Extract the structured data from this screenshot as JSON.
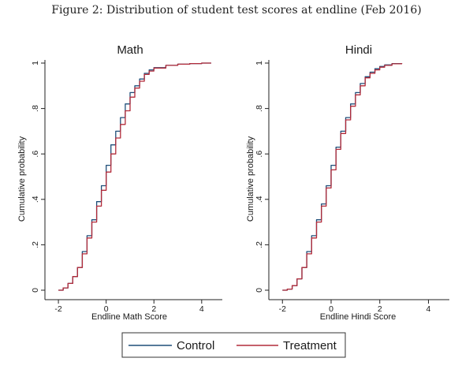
{
  "figure": {
    "title": "Figure 2: Distribution of student test scores at endline (Feb 2016)"
  },
  "legend": {
    "items": [
      {
        "label": "Control",
        "color": "#1f4e79"
      },
      {
        "label": "Treatment",
        "color": "#b22b3a"
      }
    ]
  },
  "chart_data": [
    {
      "type": "line",
      "title": "Math",
      "xlabel": "Endline Math Score",
      "ylabel": "Cumulative probability",
      "xlim": [
        -2.3,
        4.6
      ],
      "ylim": [
        0,
        1
      ],
      "xticks": [
        -2,
        0,
        2,
        4
      ],
      "xtick_labels": [
        "-2",
        "0",
        "2",
        "4"
      ],
      "yticks": [
        0,
        0.2,
        0.4,
        0.6,
        0.8,
        1
      ],
      "ytick_labels": [
        "0",
        ".2",
        ".4",
        ".6",
        ".8",
        "1"
      ],
      "grid": false,
      "series": [
        {
          "name": "Control",
          "x": [
            -2.0,
            -1.8,
            -1.6,
            -1.4,
            -1.2,
            -1.0,
            -0.8,
            -0.6,
            -0.4,
            -0.2,
            0.0,
            0.2,
            0.4,
            0.6,
            0.8,
            1.0,
            1.2,
            1.4,
            1.6,
            1.8,
            2.0,
            2.5,
            3.0,
            3.5,
            4.0,
            4.4
          ],
          "values": [
            0.0,
            0.01,
            0.03,
            0.06,
            0.1,
            0.17,
            0.24,
            0.31,
            0.39,
            0.46,
            0.55,
            0.64,
            0.7,
            0.76,
            0.82,
            0.87,
            0.9,
            0.93,
            0.955,
            0.97,
            0.98,
            0.99,
            0.995,
            0.998,
            1.0,
            1.0
          ]
        },
        {
          "name": "Treatment",
          "x": [
            -2.0,
            -1.8,
            -1.6,
            -1.4,
            -1.2,
            -1.0,
            -0.8,
            -0.6,
            -0.4,
            -0.2,
            0.0,
            0.2,
            0.4,
            0.6,
            0.8,
            1.0,
            1.2,
            1.4,
            1.6,
            1.8,
            2.0,
            2.5,
            3.0,
            3.5,
            4.0,
            4.4
          ],
          "values": [
            0.0,
            0.01,
            0.03,
            0.06,
            0.1,
            0.16,
            0.23,
            0.3,
            0.37,
            0.44,
            0.52,
            0.6,
            0.67,
            0.73,
            0.79,
            0.85,
            0.89,
            0.92,
            0.95,
            0.965,
            0.978,
            0.99,
            0.995,
            0.998,
            1.0,
            1.0
          ]
        }
      ]
    },
    {
      "type": "line",
      "title": "Hindi",
      "xlabel": "Endline Hindi Score",
      "ylabel": "Cumulative probability",
      "xlim": [
        -2.3,
        4.6
      ],
      "ylim": [
        0,
        1
      ],
      "xticks": [
        -2,
        0,
        2,
        4
      ],
      "xtick_labels": [
        "-2",
        "0",
        "2",
        "4"
      ],
      "yticks": [
        0,
        0.2,
        0.4,
        0.6,
        0.8,
        1
      ],
      "ytick_labels": [
        "0",
        ".2",
        ".4",
        ".6",
        ".8",
        "1"
      ],
      "grid": false,
      "series": [
        {
          "name": "Control",
          "x": [
            -2.0,
            -1.8,
            -1.6,
            -1.4,
            -1.2,
            -1.0,
            -0.8,
            -0.6,
            -0.4,
            -0.2,
            0.0,
            0.2,
            0.4,
            0.6,
            0.8,
            1.0,
            1.2,
            1.4,
            1.6,
            1.8,
            2.0,
            2.2,
            2.5,
            2.9
          ],
          "values": [
            0.0,
            0.005,
            0.02,
            0.05,
            0.1,
            0.17,
            0.24,
            0.31,
            0.38,
            0.46,
            0.55,
            0.63,
            0.7,
            0.76,
            0.82,
            0.87,
            0.91,
            0.94,
            0.96,
            0.975,
            0.985,
            0.992,
            0.998,
            1.0
          ]
        },
        {
          "name": "Treatment",
          "x": [
            -2.0,
            -1.8,
            -1.6,
            -1.4,
            -1.2,
            -1.0,
            -0.8,
            -0.6,
            -0.4,
            -0.2,
            0.0,
            0.2,
            0.4,
            0.6,
            0.8,
            1.0,
            1.2,
            1.4,
            1.6,
            1.8,
            2.0,
            2.2,
            2.5,
            2.9
          ],
          "values": [
            0.0,
            0.005,
            0.02,
            0.05,
            0.1,
            0.16,
            0.23,
            0.3,
            0.37,
            0.45,
            0.53,
            0.62,
            0.69,
            0.75,
            0.81,
            0.86,
            0.9,
            0.935,
            0.955,
            0.97,
            0.982,
            0.99,
            0.997,
            1.0
          ]
        }
      ]
    }
  ]
}
